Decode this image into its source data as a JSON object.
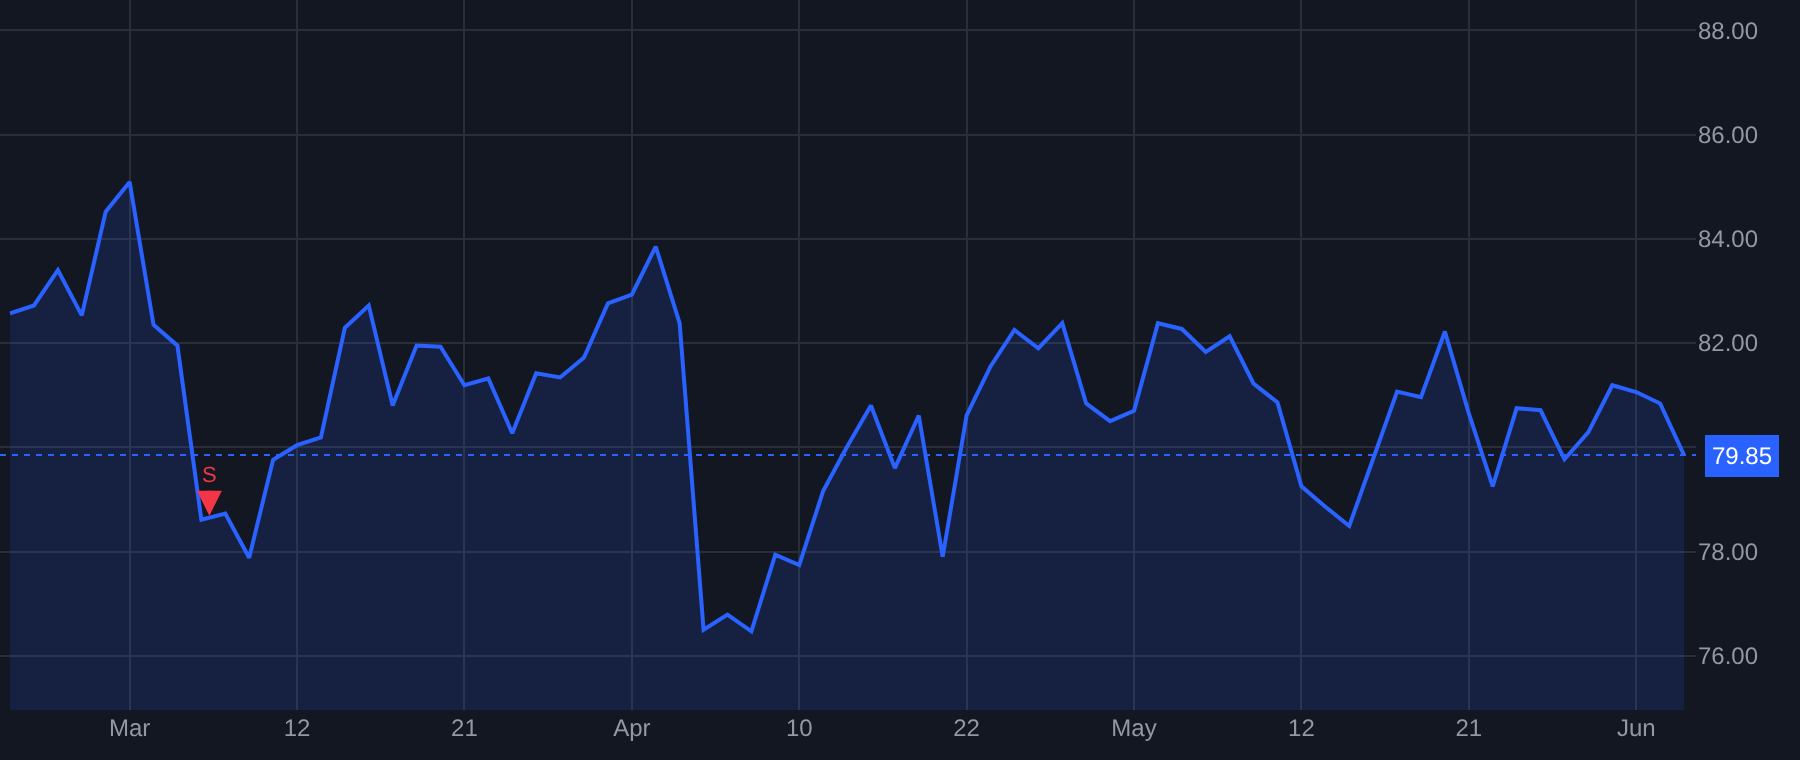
{
  "chart_data": {
    "type": "area",
    "categories": [
      null,
      null,
      null,
      null,
      null,
      "Mar",
      null,
      null,
      null,
      null,
      null,
      null,
      "12",
      null,
      null,
      null,
      null,
      null,
      null,
      "21",
      null,
      null,
      null,
      null,
      null,
      null,
      "Apr",
      null,
      null,
      null,
      null,
      null,
      null,
      "10",
      null,
      null,
      null,
      null,
      null,
      null,
      "22",
      null,
      null,
      null,
      null,
      null,
      null,
      "May",
      null,
      null,
      null,
      null,
      null,
      null,
      "12",
      null,
      null,
      null,
      null,
      null,
      null,
      "21",
      null,
      null,
      null,
      null,
      null,
      null,
      "Jun",
      null,
      null
    ],
    "series": [
      {
        "color": "#2962ff",
        "values": [
          82.57,
          82.72,
          83.4,
          82.53,
          84.52,
          85.09,
          82.35,
          81.95,
          78.61,
          78.73,
          77.88,
          79.76,
          80.04,
          80.19,
          82.29,
          82.72,
          80.8,
          81.95,
          81.93,
          81.19,
          81.32,
          80.27,
          81.42,
          81.34,
          81.72,
          82.76,
          82.93,
          83.85,
          82.38,
          76.5,
          76.79,
          76.47,
          77.94,
          77.74,
          79.16,
          80.01,
          80.8,
          79.6,
          80.61,
          77.9,
          80.61,
          81.55,
          82.25,
          81.9,
          82.38,
          80.84,
          80.5,
          80.7,
          82.38,
          82.27,
          81.83,
          82.13,
          81.22,
          80.86,
          79.25,
          78.86,
          78.49,
          79.78,
          81.07,
          80.96,
          82.22,
          80.65,
          79.25,
          80.75,
          80.71,
          79.77,
          80.29,
          81.19,
          81.06,
          80.84,
          79.85
        ]
      }
    ],
    "ylim": [
      74.96,
      88.58
    ],
    "yticks": [
      {
        "value": 76,
        "label": "76.00"
      },
      {
        "value": 78,
        "label": "78.00"
      },
      {
        "value": 80,
        "label": null
      },
      {
        "value": 82,
        "label": "82.00"
      },
      {
        "value": 84,
        "label": "84.00"
      },
      {
        "value": 86,
        "label": "86.00"
      },
      {
        "value": 88,
        "label": "88.00"
      }
    ],
    "ref_lines": [
      {
        "axis": "y",
        "value": 79.85,
        "label": "79.85",
        "color": "#2962ff",
        "line_style": "dotted"
      }
    ],
    "annotations": [
      {
        "text": "S",
        "y": 78.61
      }
    ],
    "grid": true,
    "marker": "none",
    "line_style": "solid"
  }
}
